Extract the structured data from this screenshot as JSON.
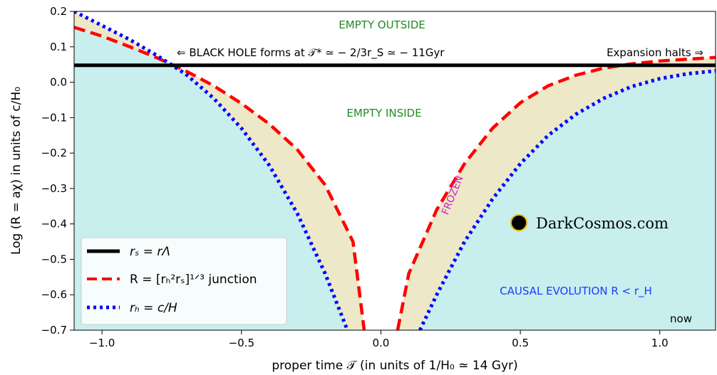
{
  "chart_data": {
    "type": "line",
    "title": "",
    "xlabel": "proper time 𝒯 (in units of 1/H₀ ≃  14 Gyr)",
    "ylabel": "Log (R = aχ)  in units of c/H₀",
    "xlim": [
      -1.1,
      1.2
    ],
    "ylim": [
      -0.7,
      0.2
    ],
    "x_ticks": [
      -1.0,
      -0.5,
      0.0,
      0.5,
      1.0
    ],
    "x_tick_labels": [
      "−1.0",
      "−0.5",
      "0.0",
      "0.5",
      "1.0"
    ],
    "y_ticks": [
      0.2,
      0.1,
      0.0,
      -0.1,
      -0.2,
      -0.3,
      -0.4,
      -0.5,
      -0.6,
      -0.7
    ],
    "y_tick_labels": [
      "0.2",
      "0.1",
      "0.0",
      "−0.1",
      "−0.2",
      "−0.3",
      "−0.4",
      "−0.5",
      "−0.6",
      "−0.7"
    ],
    "grid": false,
    "legend_position": "lower-left",
    "series": [
      {
        "name": "r_s = r_Λ",
        "label": "rₛ = rΛ",
        "color": "#000000",
        "style": "solid",
        "x": [
          -1.1,
          1.2
        ],
        "y": [
          0.048,
          0.048
        ]
      },
      {
        "name": "R = [r_H² r_S]^(1/3) junction",
        "label": "R = [rₕ²rₛ]¹ᐟ³ junction",
        "color": "#ff0000",
        "style": "dashed",
        "x": [
          -1.1,
          -1.0,
          -0.9,
          -0.8,
          -0.7,
          -0.6,
          -0.5,
          -0.4,
          -0.3,
          -0.2,
          -0.1,
          -0.06,
          0.06,
          0.1,
          0.2,
          0.3,
          0.4,
          0.5,
          0.6,
          0.7,
          0.8,
          0.9,
          1.0,
          1.1,
          1.2
        ],
        "y": [
          0.155,
          0.13,
          0.1,
          0.068,
          0.032,
          -0.01,
          -0.06,
          -0.118,
          -0.19,
          -0.29,
          -0.45,
          -0.7,
          -0.7,
          -0.54,
          -0.36,
          -0.23,
          -0.13,
          -0.058,
          -0.01,
          0.02,
          0.04,
          0.052,
          0.06,
          0.065,
          0.07
        ]
      },
      {
        "name": "r_H = c/H",
        "label": "rₕ = c/H",
        "color": "#0000ff",
        "style": "dotted",
        "x": [
          -1.1,
          -1.0,
          -0.9,
          -0.8,
          -0.7,
          -0.6,
          -0.5,
          -0.4,
          -0.3,
          -0.2,
          -0.12,
          0.14,
          0.2,
          0.3,
          0.4,
          0.5,
          0.6,
          0.7,
          0.8,
          0.9,
          1.0,
          1.1,
          1.2
        ],
        "y": [
          0.2,
          0.16,
          0.12,
          0.074,
          0.023,
          -0.045,
          -0.13,
          -0.235,
          -0.37,
          -0.54,
          -0.7,
          -0.7,
          -0.6,
          -0.45,
          -0.33,
          -0.23,
          -0.15,
          -0.09,
          -0.045,
          -0.012,
          0.01,
          0.024,
          0.032
        ]
      }
    ],
    "annotations": {
      "empty_outside": "EMPTY OUTSIDE",
      "empty_inside": "EMPTY INSIDE",
      "black_hole": "⇐  BLACK HOLE forms at 𝒯* ≃ − 2/3r_S ≃ − 11Gyr",
      "expansion_halts": "Expansion halts ⇒",
      "frozen": "FROZEN",
      "causal_evolution": "CAUSAL EVOLUTION R < r_H",
      "now": "now",
      "watermark": "DarkCosmos.com"
    },
    "colors": {
      "cyan_fill": "#c8eeee",
      "band_fill": "#ede8c8",
      "green_text": "#228b22",
      "magenta_text": "#cc22cc",
      "blue_text": "#1a3cff",
      "watermark_dot_fill": "#000000",
      "watermark_dot_ring": "#e6b800"
    }
  }
}
